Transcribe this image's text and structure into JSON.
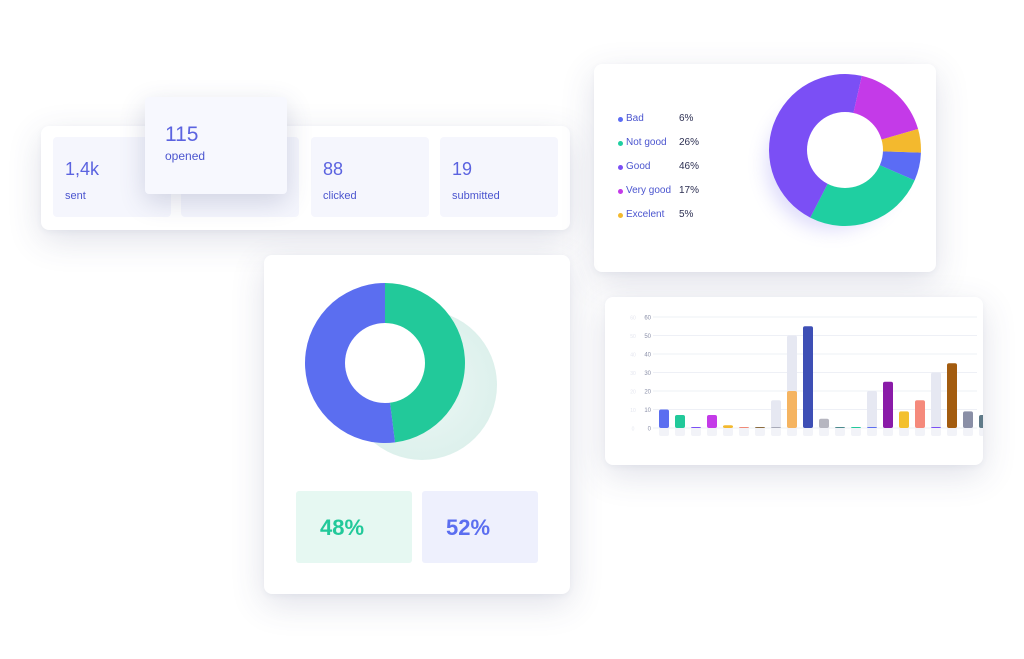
{
  "stats": {
    "popup": {
      "value": "115",
      "label": "opened"
    },
    "items": [
      {
        "value": "1,4k",
        "label": "sent"
      },
      {
        "value": "",
        "label": ""
      },
      {
        "value": "88",
        "label": "clicked"
      },
      {
        "value": "19",
        "label": "submitted"
      }
    ]
  },
  "rating": {
    "legend": [
      {
        "name": "Bad",
        "pct": "6%",
        "color": "#5b6cf5"
      },
      {
        "name": "Not good",
        "pct": "26%",
        "color": "#1fcfa1"
      },
      {
        "name": "Good",
        "pct": "46%",
        "color": "#7b4ff5"
      },
      {
        "name": "Very good",
        "pct": "17%",
        "color": "#c43ae8"
      },
      {
        "name": "Excelent",
        "pct": "5%",
        "color": "#f3b92e"
      }
    ]
  },
  "split": {
    "left_pct": "48%",
    "right_pct": "52%",
    "colors": {
      "green": "#22c99a",
      "blue": "#5b6ef0"
    }
  },
  "chart_data": [
    {
      "type": "pie",
      "style": "donut",
      "labels": [
        "Bad",
        "Not good",
        "Good",
        "Very good",
        "Excelent"
      ],
      "values": [
        6,
        26,
        46,
        17,
        5
      ],
      "colors": [
        "#5b6cf5",
        "#1fcfa1",
        "#7b4ff5",
        "#c43ae8",
        "#f3b92e"
      ]
    },
    {
      "type": "pie",
      "style": "donut",
      "labels": [
        "",
        ""
      ],
      "values": [
        48,
        52
      ],
      "colors": [
        "#22c99a",
        "#5b6ef0"
      ]
    },
    {
      "type": "bar",
      "ylim": [
        0,
        60
      ],
      "yticks": [
        "0",
        "10",
        "20",
        "30",
        "40",
        "50",
        "60"
      ],
      "grid": true,
      "bars": [
        {
          "value": 10,
          "color": "#5b6ef0",
          "ghost": 0
        },
        {
          "value": 7,
          "color": "#22c99a",
          "ghost": 0
        },
        {
          "value": 0.5,
          "color": "#7b4ff5",
          "ghost": 0
        },
        {
          "value": 7,
          "color": "#c43ae8",
          "ghost": 0
        },
        {
          "value": 1.5,
          "color": "#f3b92e",
          "ghost": 0
        },
        {
          "value": 0.5,
          "color": "#f08a78",
          "ghost": 0
        },
        {
          "value": 0.5,
          "color": "#8a6b3e",
          "ghost": 0
        },
        {
          "value": 0.5,
          "color": "#a8aab8",
          "ghost": 15
        },
        {
          "value": 20,
          "color": "#f5b461",
          "ghost": 50
        },
        {
          "value": 55,
          "color": "#3e4fb5",
          "ghost": 0
        },
        {
          "value": 5,
          "color": "#b6b6c0",
          "ghost": 0
        },
        {
          "value": 0.3,
          "color": "#4b8a8c",
          "ghost": 0
        },
        {
          "value": 0.3,
          "color": "#22c99a",
          "ghost": 0
        },
        {
          "value": 0.3,
          "color": "#5b6ef0",
          "ghost": 20
        },
        {
          "value": 25,
          "color": "#8a1ba8",
          "ghost": 0
        },
        {
          "value": 9,
          "color": "#f3c02e",
          "ghost": 0
        },
        {
          "value": 15,
          "color": "#f58a7c",
          "ghost": 0
        },
        {
          "value": 0.5,
          "color": "#7b4ff5",
          "ghost": 30
        },
        {
          "value": 35,
          "color": "#a35c0f",
          "ghost": 0
        },
        {
          "value": 9,
          "color": "#8a8fa6",
          "ghost": 0
        },
        {
          "value": 7,
          "color": "#5f7a88",
          "ghost": 0
        }
      ]
    }
  ]
}
